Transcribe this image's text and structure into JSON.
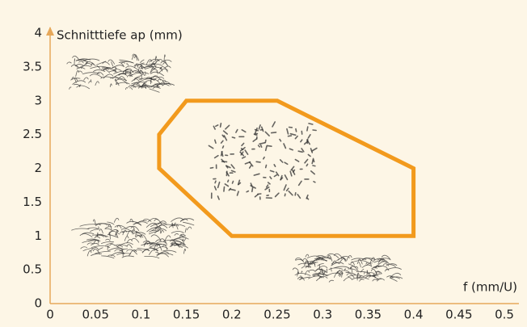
{
  "chart_data": {
    "type": "polygon",
    "x_label": "f (mm/U)",
    "y_label": "Schnitttiefe ap (mm)",
    "x": [
      0.15,
      0.25,
      0.4,
      0.4,
      0.2,
      0.12,
      0.12
    ],
    "y": [
      3,
      3,
      2,
      1,
      1,
      2,
      2.5
    ],
    "color": "#f29a1d",
    "xlim": [
      0,
      0.5
    ],
    "ylim": [
      0,
      4
    ],
    "xticks": [
      0,
      0.05,
      0.1,
      0.15,
      0.2,
      0.25,
      0.3,
      0.35,
      0.4,
      0.45,
      0.5
    ],
    "yticks": [
      0,
      0.5,
      1,
      1.5,
      2,
      2.5,
      3,
      3.5,
      4
    ]
  }
}
